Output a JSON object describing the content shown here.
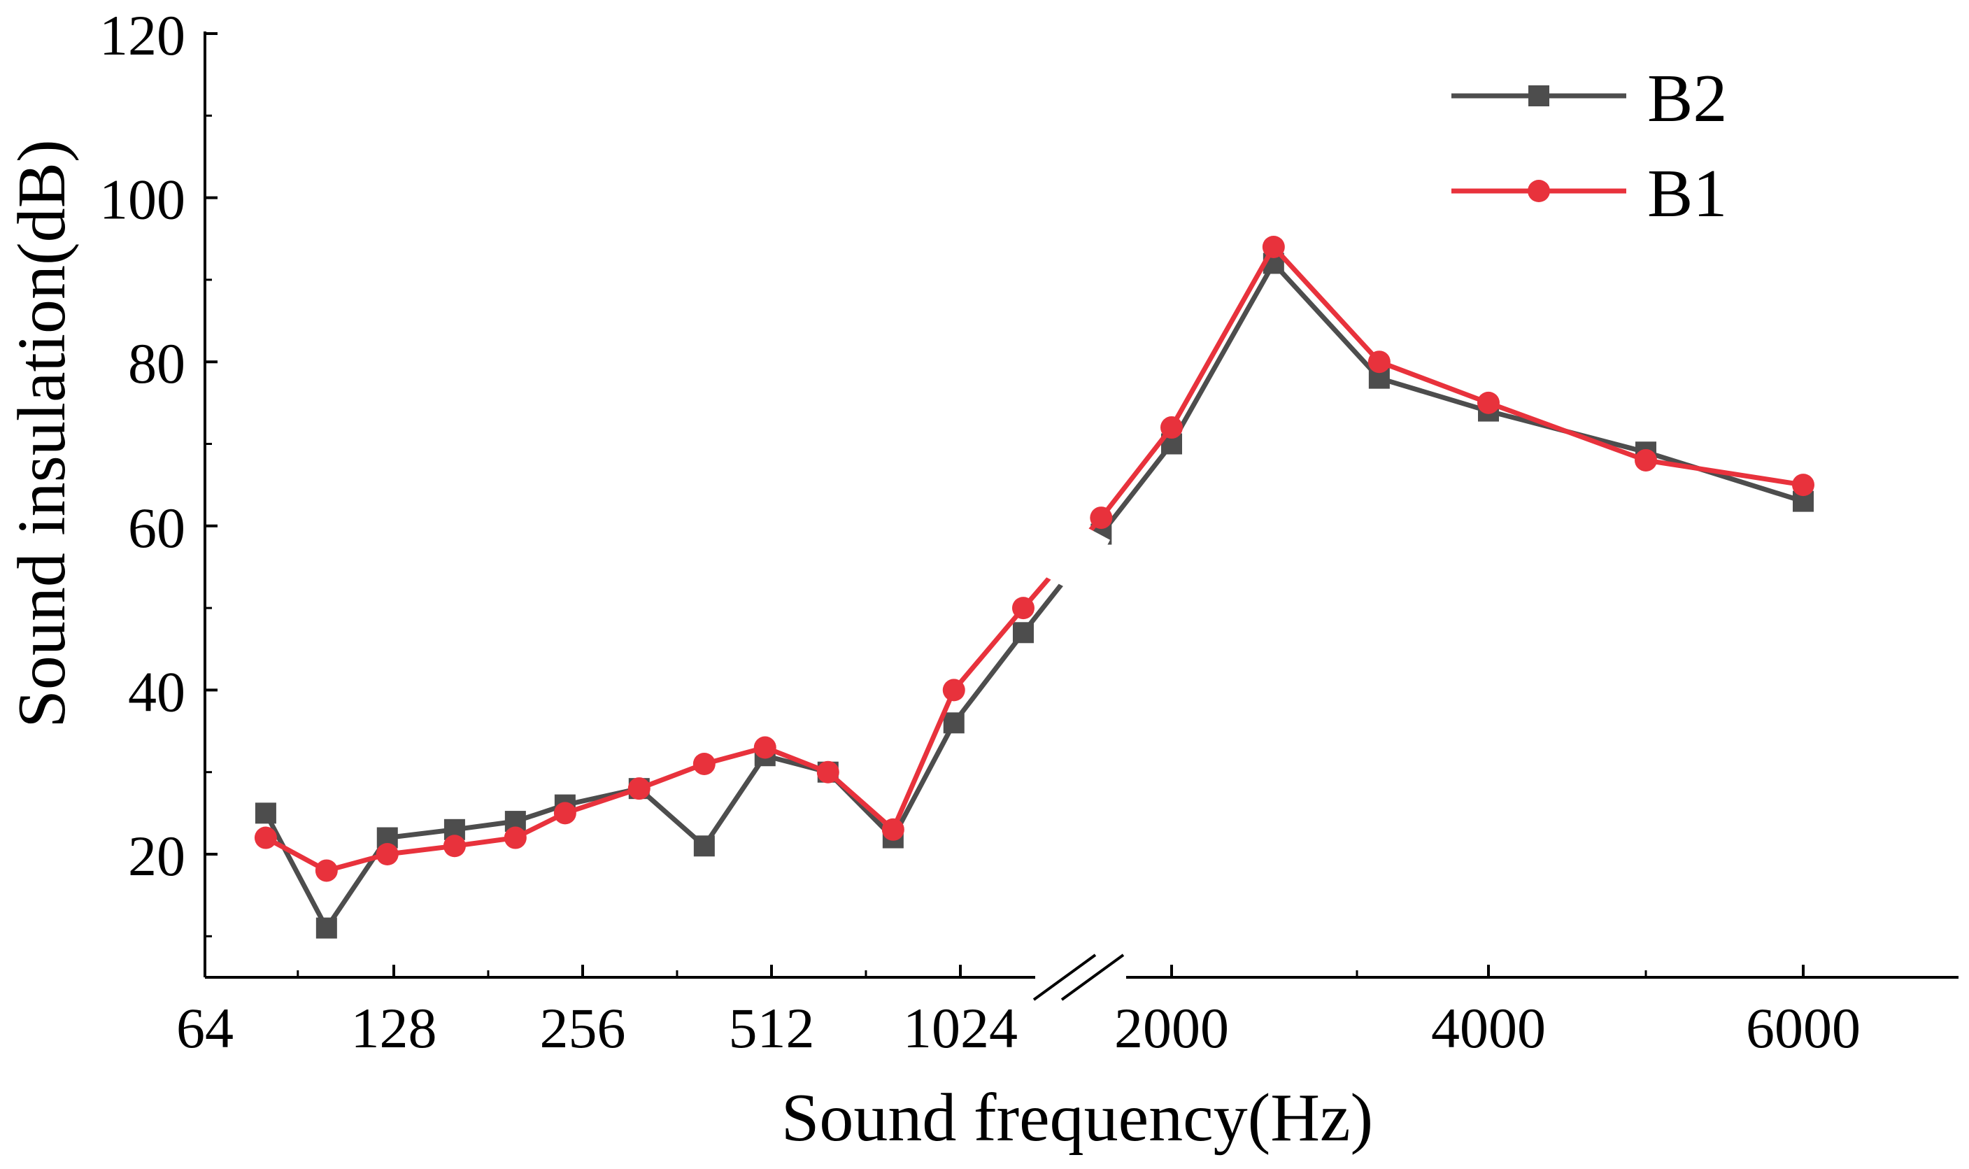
{
  "chart_data": {
    "type": "line",
    "title": "",
    "xlabel": "Sound frequency(Hz)",
    "ylabel": "Sound insulation(dB)",
    "ylim": [
      10,
      120
    ],
    "ylim_note": "axis extends below 20 to about 5",
    "yticks": [
      20,
      40,
      60,
      80,
      100,
      120
    ],
    "grid": false,
    "legend_position": "top-right",
    "x_tick_labels": [
      "64",
      "128",
      "256",
      "512",
      "1024",
      "2000",
      "4000",
      "6000"
    ],
    "axis_break": "between 1024 and 2000",
    "series": [
      {
        "name": "B2",
        "color": "#4d4d4d",
        "marker": "square",
        "points": [
          {
            "x": 80,
            "y": 25
          },
          {
            "x": 100,
            "y": 11
          },
          {
            "x": 125,
            "y": 22
          },
          {
            "x": 160,
            "y": 23
          },
          {
            "x": 200,
            "y": 24
          },
          {
            "x": 240,
            "y": 26
          },
          {
            "x": 315,
            "y": 28
          },
          {
            "x": 400,
            "y": 21
          },
          {
            "x": 500,
            "y": 32
          },
          {
            "x": 630,
            "y": 30
          },
          {
            "x": 800,
            "y": 22
          },
          {
            "x": 1000,
            "y": 36
          },
          {
            "x": 1250,
            "y": 47
          },
          {
            "x": 1600,
            "y": 59
          },
          {
            "x": 2000,
            "y": 70
          },
          {
            "x": 2500,
            "y": 92
          },
          {
            "x": 3150,
            "y": 78
          },
          {
            "x": 4000,
            "y": 74
          },
          {
            "x": 5000,
            "y": 69
          },
          {
            "x": 6000,
            "y": 63
          }
        ]
      },
      {
        "name": "B1",
        "color": "#e8323c",
        "marker": "circle",
        "points": [
          {
            "x": 80,
            "y": 22
          },
          {
            "x": 100,
            "y": 18
          },
          {
            "x": 125,
            "y": 20
          },
          {
            "x": 160,
            "y": 21
          },
          {
            "x": 200,
            "y": 22
          },
          {
            "x": 240,
            "y": 25
          },
          {
            "x": 315,
            "y": 28
          },
          {
            "x": 400,
            "y": 31
          },
          {
            "x": 500,
            "y": 33
          },
          {
            "x": 630,
            "y": 30
          },
          {
            "x": 800,
            "y": 23
          },
          {
            "x": 1000,
            "y": 40
          },
          {
            "x": 1250,
            "y": 50
          },
          {
            "x": 1600,
            "y": 61
          },
          {
            "x": 2000,
            "y": 72
          },
          {
            "x": 2500,
            "y": 94
          },
          {
            "x": 3150,
            "y": 80
          },
          {
            "x": 4000,
            "y": 75
          },
          {
            "x": 5000,
            "y": 68
          },
          {
            "x": 6000,
            "y": 65
          }
        ]
      }
    ],
    "legend_order": [
      "B2",
      "B1"
    ]
  }
}
